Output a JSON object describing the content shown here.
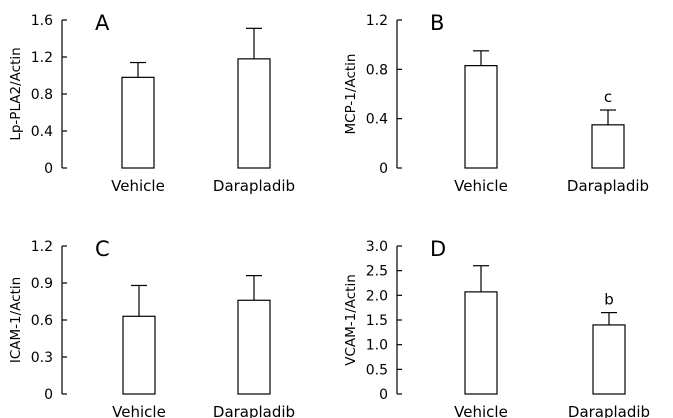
{
  "chart_data": [
    {
      "type": "bar",
      "panel": "A",
      "ylabel": "Lp-PLA2/Actin",
      "categories": [
        "Vehicle",
        "Darapladib"
      ],
      "values": [
        0.98,
        1.18
      ],
      "errors": [
        0.16,
        0.33
      ],
      "annotations": [
        "",
        ""
      ],
      "ylim": [
        0,
        1.6
      ],
      "yticks": [
        "0",
        "0.4",
        "0.8",
        "1.2",
        "1.6"
      ],
      "grid": false,
      "color": "#ffffff",
      "edge_color": "#000000"
    },
    {
      "type": "bar",
      "panel": "B",
      "ylabel": "MCP-1/Actin",
      "categories": [
        "Vehicle",
        "Darapladib"
      ],
      "values": [
        0.83,
        0.35
      ],
      "errors": [
        0.12,
        0.12
      ],
      "annotations": [
        "",
        "c"
      ],
      "ylim": [
        0,
        1.2
      ],
      "yticks": [
        "0",
        "0.4",
        "0.8",
        "1.2"
      ],
      "grid": false,
      "color": "#ffffff",
      "edge_color": "#000000"
    },
    {
      "type": "bar",
      "panel": "C",
      "ylabel": "ICAM-1/Actin",
      "categories": [
        "Vehicle",
        "Darapladib"
      ],
      "values": [
        0.63,
        0.76
      ],
      "errors": [
        0.25,
        0.2
      ],
      "annotations": [
        "",
        ""
      ],
      "ylim": [
        0,
        1.2
      ],
      "yticks": [
        "0",
        "0.3",
        "0.6",
        "0.9",
        "1.2"
      ],
      "grid": false,
      "color": "#ffffff",
      "edge_color": "#000000"
    },
    {
      "type": "bar",
      "panel": "D",
      "ylabel": "VCAM-1/Actin",
      "categories": [
        "Vehicle",
        "Darapladib"
      ],
      "values": [
        2.07,
        1.4
      ],
      "errors": [
        0.53,
        0.25
      ],
      "annotations": [
        "",
        "b"
      ],
      "ylim": [
        0,
        3.0
      ],
      "yticks": [
        "0",
        "0.5",
        "1.0",
        "1.5",
        "2.0",
        "2.5",
        "3.0"
      ],
      "grid": false,
      "color": "#ffffff",
      "edge_color": "#000000"
    }
  ]
}
